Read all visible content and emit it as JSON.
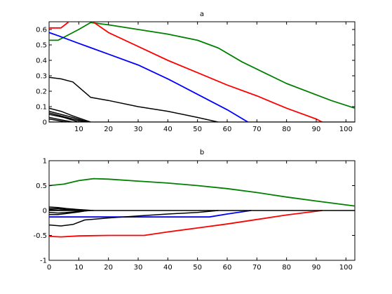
{
  "chart_data": [
    {
      "type": "line",
      "title": "a",
      "xlim": [
        0,
        103
      ],
      "ylim": [
        0,
        0.65
      ],
      "xticks": [
        "10",
        "20",
        "30",
        "40",
        "50",
        "60",
        "70",
        "80",
        "90",
        "100"
      ],
      "yticks": [
        "0",
        "0.1",
        "0.2",
        "0.3",
        "0.4",
        "0.5",
        "0.6"
      ],
      "grid": false,
      "series": [
        {
          "color": "#008000",
          "x": [
            0,
            3,
            5,
            10,
            14,
            20,
            30,
            40,
            50,
            57,
            65,
            80,
            95,
            103
          ],
          "y": [
            0.53,
            0.53,
            0.55,
            0.6,
            0.645,
            0.63,
            0.6,
            0.57,
            0.53,
            0.48,
            0.39,
            0.25,
            0.14,
            0.09
          ]
        },
        {
          "color": "#ff0000",
          "x": [
            0,
            4,
            8,
            11,
            14,
            20,
            30,
            40,
            50,
            60,
            70,
            80,
            90,
            92
          ],
          "y": [
            0.61,
            0.61,
            0.67,
            0.66,
            0.66,
            0.58,
            0.49,
            0.4,
            0.32,
            0.24,
            0.17,
            0.09,
            0.02,
            0.0
          ]
        },
        {
          "color": "#0000ff",
          "x": [
            0,
            3,
            10,
            20,
            30,
            40,
            50,
            60,
            67
          ],
          "y": [
            0.58,
            0.56,
            0.51,
            0.44,
            0.37,
            0.28,
            0.18,
            0.08,
            0.0
          ]
        },
        {
          "color": "#000000",
          "x": [
            0,
            4,
            8,
            14,
            20,
            30,
            40,
            50,
            57
          ],
          "y": [
            0.29,
            0.28,
            0.26,
            0.16,
            0.14,
            0.1,
            0.07,
            0.03,
            0.0
          ]
        },
        {
          "color": "#000000",
          "x": [
            0,
            4,
            8,
            14
          ],
          "y": [
            0.09,
            0.07,
            0.04,
            0.0
          ]
        },
        {
          "color": "#000000",
          "x": [
            0,
            4,
            8,
            13
          ],
          "y": [
            0.07,
            0.05,
            0.03,
            0.0
          ]
        },
        {
          "color": "#000000",
          "x": [
            0,
            4,
            8,
            12
          ],
          "y": [
            0.06,
            0.04,
            0.02,
            0.0
          ]
        },
        {
          "color": "#000000",
          "x": [
            0,
            5,
            10
          ],
          "y": [
            0.05,
            0.03,
            0.0
          ]
        },
        {
          "color": "#000000",
          "x": [
            0,
            4,
            8
          ],
          "y": [
            0.03,
            0.015,
            0.0
          ]
        },
        {
          "color": "#000000",
          "x": [
            0,
            3,
            6
          ],
          "y": [
            0.02,
            0.01,
            0.0
          ]
        },
        {
          "color": "#000000",
          "x": [
            0,
            103
          ],
          "y": [
            0.0,
            0.0
          ]
        }
      ]
    },
    {
      "type": "line",
      "title": "b",
      "xlim": [
        0,
        103
      ],
      "ylim": [
        -1,
        1
      ],
      "xticks": [
        "0",
        "10",
        "20",
        "30",
        "40",
        "50",
        "60",
        "70",
        "80",
        "90",
        "100"
      ],
      "yticks": [
        "-1",
        "-0.5",
        "0",
        "0.5",
        "1"
      ],
      "grid": false,
      "series": [
        {
          "color": "#008000",
          "x": [
            0,
            5,
            10,
            15,
            20,
            30,
            40,
            50,
            60,
            70,
            80,
            90,
            103
          ],
          "y": [
            0.5,
            0.53,
            0.6,
            0.64,
            0.63,
            0.59,
            0.55,
            0.5,
            0.44,
            0.36,
            0.27,
            0.19,
            0.09
          ]
        },
        {
          "color": "#ff0000",
          "x": [
            0,
            4,
            10,
            20,
            32,
            40,
            50,
            60,
            70,
            80,
            92
          ],
          "y": [
            -0.52,
            -0.53,
            -0.51,
            -0.5,
            -0.5,
            -0.43,
            -0.35,
            -0.27,
            -0.18,
            -0.09,
            0.0
          ]
        },
        {
          "color": "#0000ff",
          "x": [
            0,
            5,
            10,
            20,
            30,
            40,
            54,
            60,
            68
          ],
          "y": [
            -0.13,
            -0.13,
            -0.13,
            -0.13,
            -0.13,
            -0.13,
            -0.13,
            -0.07,
            0.0
          ]
        },
        {
          "color": "#000000",
          "x": [
            0,
            4,
            8,
            12,
            20,
            30,
            40,
            50,
            57
          ],
          "y": [
            -0.29,
            -0.31,
            -0.28,
            -0.19,
            -0.15,
            -0.11,
            -0.07,
            -0.04,
            0.0
          ]
        },
        {
          "color": "#000000",
          "x": [
            0,
            3,
            6,
            10,
            15
          ],
          "y": [
            0.07,
            0.06,
            0.04,
            0.02,
            0.0
          ]
        },
        {
          "color": "#000000",
          "x": [
            0,
            3,
            6,
            10,
            14
          ],
          "y": [
            0.04,
            0.04,
            0.02,
            0.01,
            0.0
          ]
        },
        {
          "color": "#000000",
          "x": [
            0,
            3,
            6,
            10,
            14
          ],
          "y": [
            -0.04,
            -0.05,
            -0.04,
            -0.02,
            0.0
          ]
        },
        {
          "color": "#000000",
          "x": [
            0,
            3,
            6,
            10,
            13
          ],
          "y": [
            -0.08,
            -0.08,
            -0.06,
            -0.03,
            0.0
          ]
        },
        {
          "color": "#000000",
          "x": [
            0,
            3,
            6,
            10
          ],
          "y": [
            0.02,
            0.01,
            0.005,
            0.0
          ]
        },
        {
          "color": "#000000",
          "x": [
            0,
            103
          ],
          "y": [
            0.0,
            0.0
          ]
        }
      ]
    }
  ]
}
